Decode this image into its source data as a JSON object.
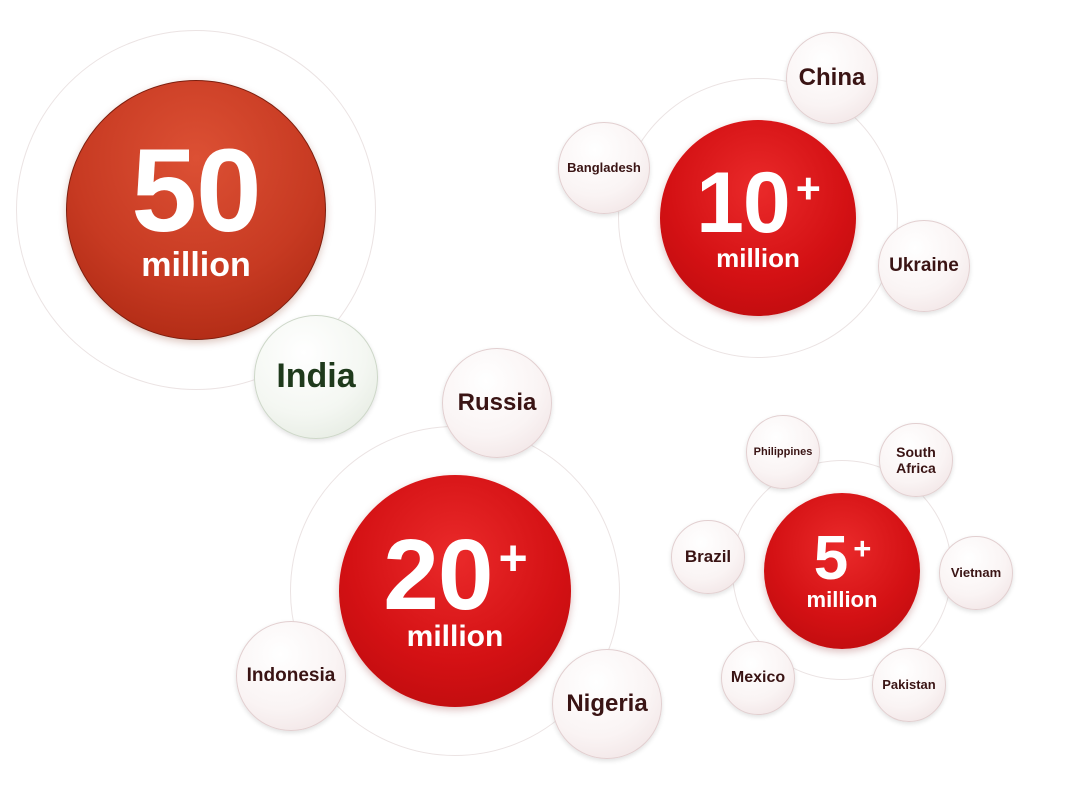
{
  "groups": [
    {
      "value": "50",
      "plus": "",
      "unit": "million",
      "countries": [
        "India"
      ]
    },
    {
      "value": "10",
      "plus": "+",
      "unit": "million",
      "countries": [
        "China",
        "Bangladesh",
        "Ukraine"
      ]
    },
    {
      "value": "20",
      "plus": "+",
      "unit": "million",
      "countries": [
        "Russia",
        "Indonesia",
        "Nigeria"
      ]
    },
    {
      "value": "5",
      "plus": "+",
      "unit": "million",
      "countries": [
        "Philippines",
        "South Africa",
        "Brazil",
        "Vietnam",
        "Mexico",
        "Pakistan"
      ]
    }
  ],
  "colors": {
    "hub_red": "#d41114",
    "hub_orange": "#c73a22",
    "satellite_text": "#3a1414"
  }
}
